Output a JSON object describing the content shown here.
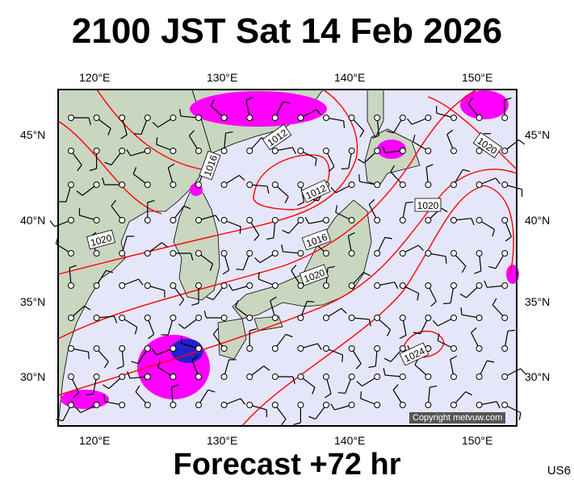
{
  "title": "2100 JST Sat 14 Feb 2026",
  "footer": "Forecast +72 hr",
  "code": "US6",
  "copyright": "Copyright metvuw.com",
  "lon_labels": [
    "120°E",
    "130°E",
    "140°E",
    "150°E"
  ],
  "lat_labels": [
    "45°N",
    "40°N",
    "35°N",
    "30°N"
  ],
  "isobar_labels": [
    "1012",
    "1016",
    "1012",
    "1020",
    "1016",
    "1020",
    "1020",
    "1020",
    "1024"
  ],
  "colors": {
    "sea": "#e6e6fa",
    "land": "#c9d6c0",
    "isobar": "#ff0000",
    "precip": "#ff00ff",
    "heavy_precip": "#2222cc"
  }
}
